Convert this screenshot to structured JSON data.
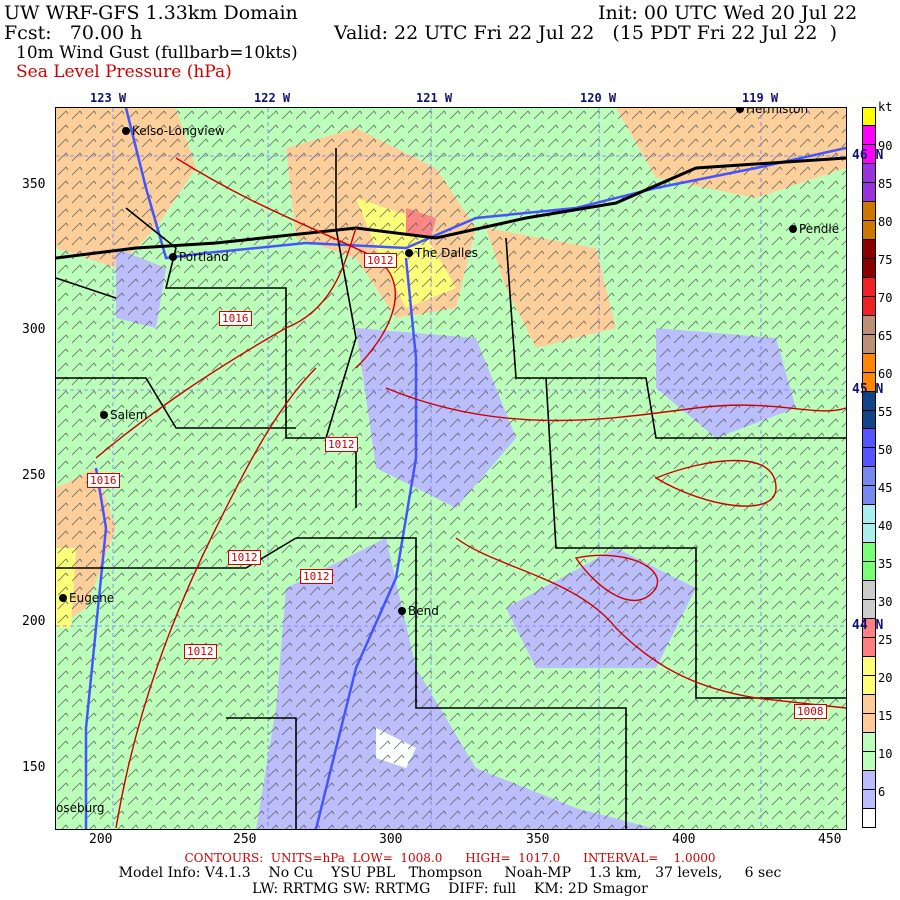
{
  "header": {
    "title": "UW WRF-GFS 1.33km Domain",
    "init": "Init: 00 UTC Wed 20 Jul 22",
    "fcst": "Fcst:   70.00 h",
    "valid": "Valid: 22 UTC Fri 22 Jul 22   (15 PDT Fri 22 Jul 22  )",
    "field1": "10m Wind Gust (fullbarb=10kts)",
    "field2": "Sea Level Pressure (hPa)"
  },
  "axes": {
    "lon_labels": [
      "123 W",
      "122 W",
      "121 W",
      "120 W",
      "119 W"
    ],
    "lat_labels": [
      "46 N",
      "45 N",
      "44 N"
    ],
    "x_ticks": [
      "200",
      "250",
      "300",
      "350",
      "400",
      "450"
    ],
    "y_ticks": [
      "350",
      "300",
      "250",
      "200",
      "150"
    ]
  },
  "cities": [
    "Kelso-Longview",
    "Portland",
    "The Dalles",
    "Pendle",
    "Salem",
    "Eugene",
    "Bend",
    "oseburg",
    "Hermiston"
  ],
  "contour_labels": [
    "1012",
    "1016",
    "1012",
    "1016",
    "1012",
    "1012",
    "1012",
    "1008"
  ],
  "colorbar": {
    "unit": "kt",
    "labels": [
      "90",
      "85",
      "80",
      "75",
      "70",
      "65",
      "60",
      "55",
      "50",
      "45",
      "40",
      "35",
      "30",
      "25",
      "20",
      "15",
      "10",
      "6"
    ],
    "colors": [
      "#ffff00",
      "#ff00ff",
      "#ff00ff",
      "#9933dd",
      "#9933dd",
      "#cc7700",
      "#cc7700",
      "#880000",
      "#880000",
      "#ee2222",
      "#ee2222",
      "#bb9077",
      "#bb9077",
      "#ff8800",
      "#ff8800",
      "#114488",
      "#114488",
      "#5555ff",
      "#5555ff",
      "#7788ee",
      "#7788ee",
      "#aaeeee",
      "#aaeeee",
      "#77ff77",
      "#77ff77",
      "#cccccc",
      "#cccccc",
      "#ff8080",
      "#ff8080",
      "#ffff77",
      "#ffff77",
      "#ffcc99",
      "#ffcc99",
      "#bbffbb",
      "#bbffbb",
      "#bbbbff",
      "#bbbbff",
      "#ffffff"
    ]
  },
  "footer": {
    "contours": "CONTOURS:  UNITS=hPa  LOW=  1008.0      HIGH=  1017.0      INTERVAL=    1.0000",
    "model_info": "Model Info: V4.1.3    No Cu    YSU PBL   Thompson     Noah-MP    1.3 km,   37 levels,     6 sec",
    "physics": "LW: RRTMG SW: RRTMG    DIFF: full    KM: 2D Smagor"
  }
}
